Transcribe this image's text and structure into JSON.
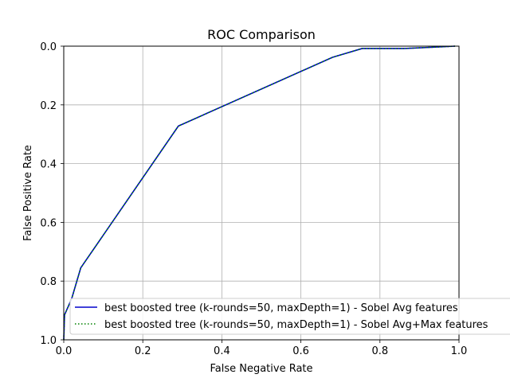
{
  "chart_data": {
    "type": "line",
    "title": "ROC Comparison",
    "xlabel": "False Negative Rate",
    "ylabel": "False Positive Rate",
    "xlim": [
      0.0,
      1.0
    ],
    "ylim": [
      1.0,
      0.0
    ],
    "y_inverted": true,
    "xticks": [
      "0.0",
      "0.2",
      "0.4",
      "0.6",
      "0.8",
      "1.0"
    ],
    "yticks": [
      "0.0",
      "0.2",
      "0.4",
      "0.6",
      "0.8",
      "1.0"
    ],
    "grid": true,
    "legend_position": "lower-right",
    "series": [
      {
        "name": "best boosted tree (k-rounds=50, maxDepth=1) - Sobel Avg features",
        "color": "#0000cc",
        "style": "solid",
        "x": [
          0.0,
          0.002,
          0.02,
          0.043,
          0.29,
          0.68,
          0.755,
          0.86,
          0.96,
          0.99
        ],
        "y": [
          1.0,
          0.915,
          0.86,
          0.755,
          0.272,
          0.038,
          0.008,
          0.008,
          0.002,
          0.0
        ]
      },
      {
        "name": "best boosted tree (k-rounds=50, maxDepth=1) - Sobel Avg+Max features",
        "color": "#008000",
        "style": "dotted",
        "x": [
          0.0,
          0.002,
          0.02,
          0.043,
          0.29,
          0.68,
          0.755,
          0.86,
          0.96,
          0.99
        ],
        "y": [
          1.0,
          0.915,
          0.86,
          0.755,
          0.272,
          0.038,
          0.008,
          0.008,
          0.002,
          0.0
        ]
      }
    ]
  }
}
